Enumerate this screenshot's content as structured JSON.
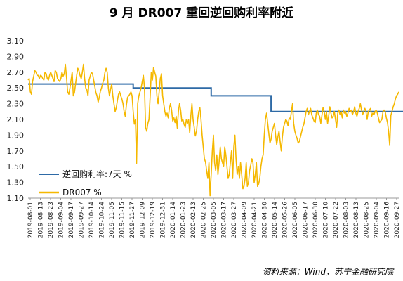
{
  "chart_data": {
    "type": "line",
    "title": "9 月 DR007 重回逆回购利率附近",
    "ylim": [
      1.1,
      3.1
    ],
    "yticks": [
      "3.10",
      "2.90",
      "2.70",
      "2.50",
      "2.30",
      "2.10",
      "1.90",
      "1.70",
      "1.50",
      "1.30",
      "1.10"
    ],
    "x_ticks": [
      "2019-08-01",
      "2019-08-13",
      "2019-08-23",
      "2019-09-04",
      "2019-09-17",
      "2019-09-27",
      "2019-10-14",
      "2019-10-24",
      "2019-11-05",
      "2019-11-15",
      "2019-11-27",
      "2019-12-09",
      "2019-12-19",
      "2019-12-31",
      "2020-01-14",
      "2020-01-23",
      "2020-02-13",
      "2020-02-25",
      "2020-03-05",
      "2020-03-17",
      "2020-03-27",
      "2020-04-09",
      "2020-04-21",
      "2020-04-30",
      "2020-05-14",
      "2020-05-26",
      "2020-06-05",
      "2020-06-17",
      "2020-06-30",
      "2020-07-10",
      "2020-07-22",
      "2020-08-03",
      "2020-08-13",
      "2020-08-25",
      "2020-09-04",
      "2020-09-16",
      "2020-09-27"
    ],
    "grid": false,
    "legend_position": "bottom-left",
    "series": [
      {
        "name": "逆回购利率:7天 %",
        "color": "#2e6aa6",
        "step": true,
        "x_index": [
          0,
          93,
          162,
          215,
          348
        ],
        "values": [
          2.55,
          2.5,
          2.4,
          2.2,
          2.2
        ]
      },
      {
        "name": "DR007 %",
        "color": "#f5b800",
        "values": [
          2.6,
          2.62,
          2.45,
          2.42,
          2.58,
          2.65,
          2.72,
          2.7,
          2.66,
          2.66,
          2.62,
          2.66,
          2.65,
          2.62,
          2.6,
          2.7,
          2.68,
          2.62,
          2.6,
          2.66,
          2.7,
          2.66,
          2.62,
          2.58,
          2.72,
          2.7,
          2.62,
          2.6,
          2.58,
          2.62,
          2.7,
          2.65,
          2.68,
          2.8,
          2.64,
          2.45,
          2.42,
          2.5,
          2.6,
          2.7,
          2.4,
          2.44,
          2.55,
          2.66,
          2.75,
          2.72,
          2.66,
          2.62,
          2.7,
          2.8,
          2.62,
          2.5,
          2.48,
          2.4,
          2.6,
          2.65,
          2.7,
          2.68,
          2.6,
          2.52,
          2.44,
          2.4,
          2.32,
          2.38,
          2.46,
          2.5,
          2.56,
          2.6,
          2.7,
          2.75,
          2.7,
          2.5,
          2.4,
          2.48,
          2.55,
          2.4,
          2.3,
          2.2,
          2.25,
          2.34,
          2.42,
          2.45,
          2.4,
          2.36,
          2.3,
          2.2,
          2.14,
          2.28,
          2.38,
          2.4,
          2.42,
          2.45,
          2.4,
          2.2,
          2.04,
          2.1,
          1.54,
          2.3,
          2.4,
          2.45,
          2.5,
          2.58,
          2.66,
          2.5,
          2.0,
          1.95,
          2.05,
          2.1,
          2.4,
          2.7,
          2.6,
          2.76,
          2.7,
          2.65,
          2.4,
          2.3,
          2.45,
          2.62,
          2.68,
          2.4,
          2.3,
          2.2,
          2.14,
          2.18,
          2.12,
          2.24,
          2.3,
          2.22,
          2.08,
          2.12,
          2.06,
          2.14,
          1.99,
          2.2,
          2.3,
          2.22,
          2.08,
          2.1,
          2.04,
          2.0,
          2.1,
          2.05,
          2.1,
          1.93,
          2.15,
          2.3,
          2.1,
          2.0,
          1.89,
          1.95,
          2.1,
          2.2,
          2.25,
          2.1,
          1.9,
          1.75,
          1.6,
          1.56,
          1.45,
          1.35,
          1.55,
          1.13,
          1.4,
          1.7,
          1.9,
          1.55,
          1.45,
          1.65,
          1.4,
          1.55,
          1.75,
          1.6,
          1.55,
          1.5,
          1.75,
          1.65,
          1.5,
          1.35,
          1.4,
          1.55,
          1.7,
          1.35,
          1.75,
          1.9,
          1.6,
          1.4,
          1.5,
          1.35,
          1.55,
          1.4,
          1.22,
          1.25,
          1.35,
          1.55,
          1.25,
          1.3,
          1.45,
          1.52,
          1.6,
          1.55,
          1.3,
          1.4,
          1.55,
          1.25,
          1.28,
          1.35,
          1.5,
          1.6,
          1.65,
          1.9,
          2.1,
          2.18,
          2.05,
          1.92,
          1.8,
          1.85,
          1.95,
          2.0,
          2.05,
          1.9,
          1.78,
          1.88,
          1.95,
          1.82,
          1.7,
          1.88,
          2.0,
          2.05,
          2.1,
          2.08,
          2.02,
          2.12,
          2.1,
          2.2,
          2.3,
          2.05,
          1.95,
          1.9,
          1.86,
          1.8,
          1.82,
          1.88,
          1.94,
          2.0,
          2.04,
          2.12,
          2.2,
          2.24,
          2.16,
          2.2,
          2.24,
          2.16,
          2.12,
          2.08,
          2.06,
          2.18,
          2.22,
          2.16,
          2.14,
          2.05,
          2.15,
          2.25,
          2.2,
          2.1,
          2.2,
          2.05,
          2.15,
          2.26,
          2.18,
          2.12,
          2.14,
          2.2,
          2.1,
          2.0,
          2.18,
          2.22,
          2.16,
          2.2,
          2.12,
          2.22,
          2.18,
          2.2,
          2.14,
          2.18,
          2.24,
          2.2,
          2.22,
          2.16,
          2.2,
          2.26,
          2.18,
          2.14,
          2.2,
          2.24,
          2.3,
          2.22,
          2.16,
          2.2,
          2.24,
          2.2,
          2.1,
          2.2,
          2.22,
          2.24,
          2.14,
          2.18,
          2.16,
          2.2,
          2.22,
          2.18,
          2.12,
          2.06,
          2.08,
          2.1,
          2.2,
          2.22,
          2.2,
          2.12,
          2.06,
          1.95,
          1.77,
          2.15,
          2.2,
          2.26,
          2.3,
          2.36,
          2.4,
          2.42,
          2.45
        ]
      }
    ]
  },
  "source_note": "资料来源：Wind，苏宁金融研究院"
}
